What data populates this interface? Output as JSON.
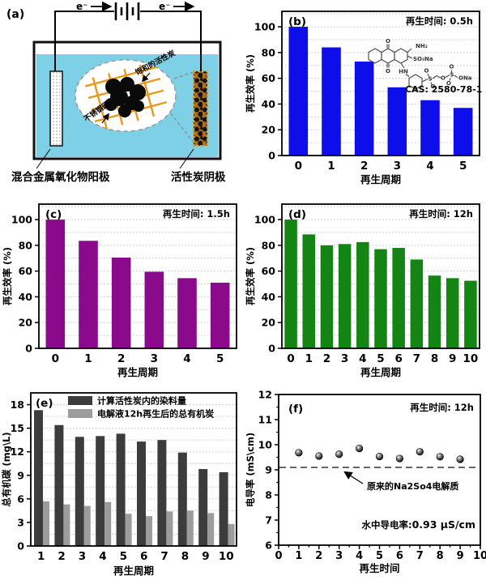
{
  "diagram": {
    "panel_label": "(a)",
    "electron_label_left": "e⁻",
    "electron_label_right": "e⁻",
    "saturated_carbon_label": "饱和的活性炭",
    "mesh_label": "不锈钢网",
    "anode_label": "混合金属氧化物阳极",
    "cathode_label": "活性炭阴极"
  },
  "colors": {
    "water": "#7ED0E6",
    "mesh": "#E8991C",
    "bar_blue": "#0E0EEB",
    "bar_purple": "#8B0A8B",
    "bar_green": "#148514",
    "bar_dark": "#3C3C3C",
    "bar_gray": "#9C9C9C"
  },
  "chem": {
    "cas": "CAS: 2580-78-1",
    "o_top": "O",
    "o_bottom": "O",
    "nh2": "NH₂",
    "so3na": "SO₃Na",
    "hn": "HN",
    "s1": "S",
    "o_s1a": "O",
    "o_s1b": "O",
    "o_chain": "O",
    "s2": "S",
    "o_s2a": "O",
    "o_s2b": "O",
    "ona": "ONa"
  },
  "f_extra": {
    "dashed_label": "原来的Na2So4电解质",
    "conductivity_label": "水中导电率:",
    "conductivity_value": "0.93 μS/cm"
  },
  "chart_data": [
    {
      "id": "b",
      "type": "bar",
      "panel_label": "(b)",
      "annotation": "再生时间: 0.5h",
      "categories": [
        "0",
        "1",
        "2",
        "3",
        "4",
        "5"
      ],
      "values": [
        100,
        84,
        73,
        53,
        43,
        37
      ],
      "color": "#0E0EEB",
      "xlabel": "再生周期",
      "ylabel": "再生效率 (%)",
      "ylim": [
        0,
        112
      ],
      "yticks": [
        0,
        20,
        40,
        60,
        80,
        100
      ],
      "grid_step": 10,
      "legend_position": "none"
    },
    {
      "id": "c",
      "type": "bar",
      "panel_label": "(c)",
      "annotation": "再生时间: 1.5h",
      "categories": [
        "0",
        "1",
        "2",
        "3",
        "4",
        "5"
      ],
      "values": [
        100,
        83.5,
        70.5,
        59.5,
        54.5,
        51
      ],
      "color": "#8B0A8B",
      "xlabel": "再生周期",
      "ylabel": "再生效率 (%)",
      "ylim": [
        0,
        112
      ],
      "yticks": [
        0,
        20,
        40,
        60,
        80,
        100
      ],
      "grid_step": 10,
      "legend_position": "none"
    },
    {
      "id": "d",
      "type": "bar",
      "panel_label": "(d)",
      "annotation": "再生时间: 12h",
      "categories": [
        "0",
        "1",
        "2",
        "3",
        "4",
        "5",
        "6",
        "7",
        "8",
        "9",
        "10"
      ],
      "values": [
        100,
        88.5,
        80,
        81,
        82.5,
        77,
        78,
        69,
        56.5,
        54.5,
        52.5
      ],
      "color": "#148514",
      "xlabel": "再生周期",
      "ylabel": "再生效率 (%)",
      "ylim": [
        0,
        112
      ],
      "yticks": [
        0,
        20,
        40,
        60,
        80,
        100
      ],
      "grid_step": 10,
      "legend_position": "none"
    },
    {
      "id": "e",
      "type": "grouped_bar",
      "panel_label": "(e)",
      "categories": [
        "1",
        "2",
        "3",
        "4",
        "5",
        "6",
        "7",
        "8",
        "9",
        "10"
      ],
      "series": [
        {
          "name": "计算活性炭内的染料量",
          "color": "#3C3C3C",
          "values": [
            17.3,
            15.4,
            13.9,
            14.0,
            14.3,
            13.3,
            13.5,
            11.9,
            9.8,
            9.4
          ]
        },
        {
          "name": "电解液12h再生后的总有机炭",
          "color": "#9C9C9C",
          "values": [
            5.7,
            5.3,
            5.1,
            5.6,
            4.1,
            3.8,
            4.4,
            4.5,
            4.2,
            2.8
          ]
        }
      ],
      "xlabel": "再生周期",
      "ylabel": "总有机碳 (mg\\L)",
      "ylim": [
        0,
        19.5
      ],
      "yticks": [
        0,
        3,
        6,
        9,
        12,
        15,
        18
      ],
      "grid_step": 1.5,
      "legend_position": "top-left"
    },
    {
      "id": "f",
      "type": "scatter",
      "panel_label": "(f)",
      "annotation": "再生时间: 12h",
      "x": [
        1,
        2,
        3,
        4,
        5,
        6,
        7,
        8,
        9
      ],
      "y": [
        9.68,
        9.55,
        9.62,
        9.85,
        9.53,
        9.45,
        9.72,
        9.52,
        9.42
      ],
      "dashed_line_y": 9.1,
      "xlabel": "再生时间",
      "ylabel": "电导率 (mS\\cm)",
      "xlim": [
        0,
        10
      ],
      "xticks": [
        0,
        1,
        2,
        3,
        4,
        5,
        6,
        7,
        8,
        9,
        10
      ],
      "ylim": [
        6,
        12
      ],
      "yticks": [
        6,
        7,
        8,
        9,
        10,
        11,
        12
      ],
      "grid_step": 0,
      "legend_position": "none"
    }
  ]
}
